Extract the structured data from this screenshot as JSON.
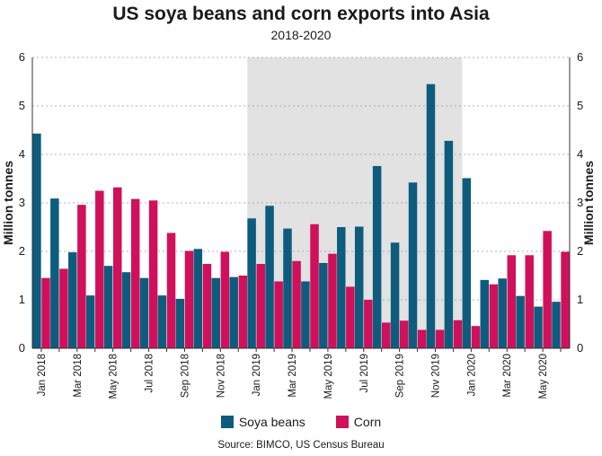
{
  "chart_data": {
    "type": "bar",
    "title": "US soya beans and corn exports into Asia",
    "subtitle": "2018-2020",
    "ylabel_left": "Million tonnes",
    "ylabel_right": "Million tonnes",
    "ylim": [
      0,
      6
    ],
    "yticks": [
      "0",
      "1",
      "2",
      "3",
      "4",
      "5",
      "6"
    ],
    "grid": true,
    "legend_position": "bottom",
    "highlight_range": {
      "from": "Jan 2019",
      "to": "Dec 2019"
    },
    "categories": [
      "Jan 2018",
      "Feb 2018",
      "Mar 2018",
      "Apr 2018",
      "May 2018",
      "Jun 2018",
      "Jul 2018",
      "Aug 2018",
      "Sep 2018",
      "Oct 2018",
      "Nov 2018",
      "Dec 2018",
      "Jan 2019",
      "Feb 2019",
      "Mar 2019",
      "Apr 2019",
      "May 2019",
      "Jun 2019",
      "Jul 2019",
      "Aug 2019",
      "Sep 2019",
      "Oct 2019",
      "Nov 2019",
      "Dec 2019",
      "Jan 2020",
      "Feb 2020",
      "Mar 2020",
      "Apr 2020",
      "May 2020",
      "Jun 2020"
    ],
    "tick_labels": [
      "Jan 2018",
      "",
      "Mar 2018",
      "",
      "May 2018",
      "",
      "Jul 2018",
      "",
      "Sep 2018",
      "",
      "Nov 2018",
      "",
      "Jan 2019",
      "",
      "Mar 2019",
      "",
      "May 2019",
      "",
      "Jul 2019",
      "",
      "Sep 2019",
      "",
      "Nov 2019",
      "",
      "Jan 2020",
      "",
      "Mar 2020",
      "",
      "May 2020",
      ""
    ],
    "series": [
      {
        "name": "Soya beans",
        "color": "#0e5c7d",
        "values": [
          4.43,
          3.09,
          1.98,
          1.09,
          1.7,
          1.57,
          1.45,
          1.09,
          1.02,
          2.05,
          1.45,
          1.47,
          2.68,
          2.94,
          2.47,
          1.38,
          1.76,
          2.5,
          2.51,
          3.76,
          2.18,
          3.42,
          5.45,
          4.28,
          3.51,
          1.41,
          1.44,
          1.08,
          0.86,
          0.96
        ]
      },
      {
        "name": "Corn",
        "color": "#d0105a",
        "values": [
          1.45,
          1.64,
          2.96,
          3.25,
          3.32,
          3.08,
          3.05,
          2.38,
          2.01,
          1.74,
          1.99,
          1.5,
          1.74,
          1.38,
          1.8,
          2.56,
          1.95,
          1.27,
          1.0,
          0.53,
          0.57,
          0.38,
          0.38,
          0.58,
          0.46,
          1.32,
          1.92,
          1.92,
          2.42,
          1.99
        ]
      }
    ]
  },
  "source": "Source: BIMCO, US Census Bureau"
}
